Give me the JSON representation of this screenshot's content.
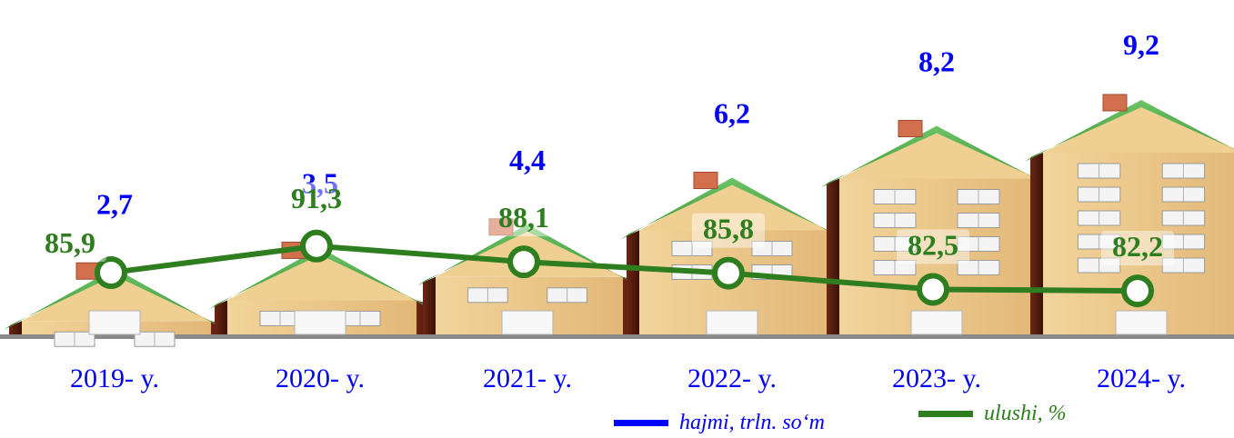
{
  "chart_data": {
    "type": "bar",
    "categories": [
      "2019- y.",
      "2020- y.",
      "2021- y.",
      "2022- y.",
      "2023- y.",
      "2024- y."
    ],
    "series": [
      {
        "name": "hajmi, trln. so‘m",
        "values": [
          2.7,
          3.5,
          4.4,
          6.2,
          8.2,
          9.2
        ],
        "labels": [
          "2,7",
          "3,5",
          "4,4",
          "6,2",
          "8,2",
          "9,2"
        ],
        "render": "house-bars"
      },
      {
        "name": "ulushi, %",
        "values": [
          85.9,
          91.3,
          88.1,
          85.8,
          82.5,
          82.2
        ],
        "labels": [
          "85,9",
          "91,3",
          "88,1",
          "85,8",
          "82,5",
          "82,2"
        ],
        "render": "line"
      }
    ],
    "legend_position": "bottom-right",
    "grid": false
  },
  "colors": {
    "volume_series": "#0000ff",
    "share_series": "#2e7d1f",
    "house_wall": "#ecc98c",
    "house_roof": "#4fae4a",
    "house_side": "#5a1e10"
  },
  "legend": {
    "items": [
      {
        "label": "hajmi, trln. so‘m",
        "color": "#0000ff"
      },
      {
        "label": "ulushi, %",
        "color": "#2e7d1f"
      }
    ]
  }
}
